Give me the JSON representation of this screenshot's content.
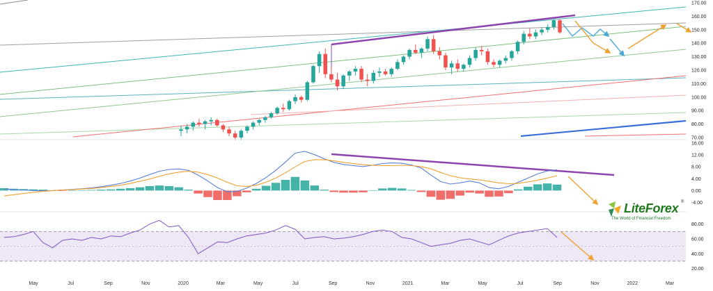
{
  "chart_data": [
    {
      "type": "candlestick",
      "panel": "price",
      "y_axis": {
        "ticks": [
          "170.00",
          "160.00",
          "150.00",
          "140.00",
          "130.00",
          "120.00",
          "110.00",
          "100.00",
          "90.00",
          "80.00",
          "70.00"
        ],
        "ylim": [
          70,
          170
        ],
        "position": "right"
      },
      "x_axis": {
        "ticks": [
          "May",
          "Jul",
          "Sep",
          "Nov",
          "2020",
          "Mar",
          "May",
          "Jul",
          "Sep",
          "Nov",
          "2021",
          "Mar",
          "May",
          "Jul",
          "Sep",
          "Nov",
          "2022",
          "Mar"
        ]
      },
      "up_color": "#26a69a",
      "down_color": "#ef5350",
      "candles": [
        {
          "o": 75,
          "h": 79,
          "l": 71,
          "c": 76
        },
        {
          "o": 76,
          "h": 80,
          "l": 73,
          "c": 78
        },
        {
          "o": 78,
          "h": 82,
          "l": 75,
          "c": 81
        },
        {
          "o": 81,
          "h": 84,
          "l": 78,
          "c": 80
        },
        {
          "o": 80,
          "h": 83,
          "l": 76,
          "c": 82
        },
        {
          "o": 82,
          "h": 85,
          "l": 79,
          "c": 83
        },
        {
          "o": 83,
          "h": 84,
          "l": 78,
          "c": 79
        },
        {
          "o": 79,
          "h": 80,
          "l": 74,
          "c": 76
        },
        {
          "o": 76,
          "h": 78,
          "l": 71,
          "c": 73
        },
        {
          "o": 73,
          "h": 75,
          "l": 68,
          "c": 70
        },
        {
          "o": 70,
          "h": 76,
          "l": 68,
          "c": 75
        },
        {
          "o": 75,
          "h": 79,
          "l": 73,
          "c": 78
        },
        {
          "o": 78,
          "h": 82,
          "l": 76,
          "c": 81
        },
        {
          "o": 81,
          "h": 84,
          "l": 79,
          "c": 83
        },
        {
          "o": 83,
          "h": 86,
          "l": 81,
          "c": 85
        },
        {
          "o": 85,
          "h": 89,
          "l": 84,
          "c": 88
        },
        {
          "o": 88,
          "h": 93,
          "l": 87,
          "c": 92
        },
        {
          "o": 92,
          "h": 95,
          "l": 89,
          "c": 91
        },
        {
          "o": 91,
          "h": 98,
          "l": 90,
          "c": 97
        },
        {
          "o": 97,
          "h": 102,
          "l": 95,
          "c": 100
        },
        {
          "o": 100,
          "h": 101,
          "l": 96,
          "c": 98
        },
        {
          "o": 98,
          "h": 112,
          "l": 97,
          "c": 111
        },
        {
          "o": 111,
          "h": 124,
          "l": 110,
          "c": 123
        },
        {
          "o": 123,
          "h": 134,
          "l": 118,
          "c": 132
        },
        {
          "o": 132,
          "h": 136,
          "l": 114,
          "c": 117
        },
        {
          "o": 117,
          "h": 123,
          "l": 111,
          "c": 113
        },
        {
          "o": 113,
          "h": 118,
          "l": 105,
          "c": 108
        },
        {
          "o": 108,
          "h": 117,
          "l": 106,
          "c": 116
        },
        {
          "o": 116,
          "h": 120,
          "l": 112,
          "c": 119
        },
        {
          "o": 119,
          "h": 123,
          "l": 116,
          "c": 121
        },
        {
          "o": 121,
          "h": 123,
          "l": 111,
          "c": 113
        },
        {
          "o": 113,
          "h": 117,
          "l": 108,
          "c": 112
        },
        {
          "o": 112,
          "h": 120,
          "l": 110,
          "c": 118
        },
        {
          "o": 118,
          "h": 122,
          "l": 115,
          "c": 119
        },
        {
          "o": 119,
          "h": 121,
          "l": 116,
          "c": 117
        },
        {
          "o": 117,
          "h": 122,
          "l": 115,
          "c": 121
        },
        {
          "o": 121,
          "h": 128,
          "l": 120,
          "c": 126
        },
        {
          "o": 126,
          "h": 131,
          "l": 124,
          "c": 130
        },
        {
          "o": 130,
          "h": 136,
          "l": 128,
          "c": 135
        },
        {
          "o": 135,
          "h": 139,
          "l": 132,
          "c": 133
        },
        {
          "o": 133,
          "h": 137,
          "l": 129,
          "c": 136
        },
        {
          "o": 136,
          "h": 145,
          "l": 134,
          "c": 143
        },
        {
          "o": 143,
          "h": 146,
          "l": 132,
          "c": 134
        },
        {
          "o": 134,
          "h": 137,
          "l": 128,
          "c": 131
        },
        {
          "o": 131,
          "h": 133,
          "l": 120,
          "c": 122
        },
        {
          "o": 122,
          "h": 127,
          "l": 117,
          "c": 125
        },
        {
          "o": 125,
          "h": 128,
          "l": 119,
          "c": 121
        },
        {
          "o": 121,
          "h": 125,
          "l": 119,
          "c": 124
        },
        {
          "o": 124,
          "h": 131,
          "l": 122,
          "c": 129
        },
        {
          "o": 129,
          "h": 137,
          "l": 127,
          "c": 135
        },
        {
          "o": 135,
          "h": 138,
          "l": 131,
          "c": 134
        },
        {
          "o": 134,
          "h": 136,
          "l": 124,
          "c": 126
        },
        {
          "o": 126,
          "h": 128,
          "l": 122,
          "c": 124
        },
        {
          "o": 124,
          "h": 128,
          "l": 122,
          "c": 127
        },
        {
          "o": 127,
          "h": 131,
          "l": 125,
          "c": 129
        },
        {
          "o": 129,
          "h": 135,
          "l": 127,
          "c": 134
        },
        {
          "o": 134,
          "h": 142,
          "l": 132,
          "c": 141
        },
        {
          "o": 141,
          "h": 149,
          "l": 139,
          "c": 147
        },
        {
          "o": 147,
          "h": 151,
          "l": 143,
          "c": 145
        },
        {
          "o": 145,
          "h": 150,
          "l": 143,
          "c": 148
        },
        {
          "o": 148,
          "h": 152,
          "l": 146,
          "c": 150
        },
        {
          "o": 150,
          "h": 154,
          "l": 148,
          "c": 152
        },
        {
          "o": 152,
          "h": 158,
          "l": 150,
          "c": 157
        },
        {
          "o": 157,
          "h": 158,
          "l": 147,
          "c": 148
        }
      ]
    },
    {
      "type": "line",
      "panel": "macd",
      "y_axis": {
        "ticks": [
          "16.00",
          "12.00",
          "8.00",
          "4.00",
          "0.00",
          "-4.00"
        ],
        "ylim": [
          -6,
          16
        ]
      },
      "series": [
        {
          "color": "#5b7fd6",
          "values": [
            0.5,
            0.4,
            0.2,
            0,
            -0.1,
            0,
            0.2,
            0.4,
            0.6,
            0.9,
            1.3,
            1.8,
            2.4,
            3.2,
            4.2,
            5.4,
            6.5,
            7.1,
            7.3,
            6.8,
            5.2,
            3.2,
            1.0,
            -0.4,
            -0.3,
            0.8,
            2.4,
            4.4,
            6.8,
            9.6,
            12.6,
            13.2,
            12.1,
            10.7,
            9.5,
            8.8,
            8.4,
            8.1,
            8.5,
            9.1,
            9.3,
            9.2,
            8.6,
            7.6,
            5.2,
            3.0,
            2.2,
            2.6,
            3.2,
            2.6,
            1.0,
            0.6,
            1.4,
            2.8,
            4.2,
            5.6,
            6.6,
            7.0
          ]
        },
        {
          "color": "#f0a030",
          "values": [
            -1.8,
            -1.4,
            -1,
            -0.6,
            -0.3,
            0,
            0.2,
            0.3,
            0.5,
            0.7,
            1,
            1.4,
            1.8,
            2.4,
            3.1,
            3.9,
            4.8,
            5.6,
            6.2,
            6.5,
            6.2,
            5.4,
            4.2,
            2.8,
            1.6,
            1.4,
            1.8,
            2.8,
            4.2,
            6.0,
            8.0,
            9.8,
            10.4,
            10.4,
            10.0,
            9.5,
            9.1,
            8.7,
            8.5,
            8.4,
            8.4,
            8.5,
            8.4,
            8.1,
            7.3,
            6.1,
            5.0,
            4.3,
            3.9,
            3.6,
            3.1,
            2.6,
            2.3,
            2.4,
            2.9,
            3.5,
            4.2,
            5.0
          ]
        }
      ],
      "histogram": [
        0.8,
        0.6,
        0.5,
        0.4,
        0.3,
        0.1,
        -0.1,
        0.1,
        0.1,
        0.2,
        0.3,
        0.4,
        0.6,
        0.8,
        1.1,
        1.5,
        1.7,
        1.5,
        1.1,
        0.3,
        -1.0,
        -2.2,
        -3.2,
        -3.2,
        -1.9,
        -0.6,
        0.6,
        1.6,
        2.6,
        3.6,
        4.6,
        3.4,
        1.7,
        0.3,
        -0.5,
        -0.7,
        -0.7,
        -0.6,
        0,
        0.7,
        0.9,
        0.7,
        0.2,
        -0.5,
        -2.1,
        -3.1,
        -2.8,
        -1.7,
        -0.7,
        -1.0,
        -2.1,
        -2.0,
        -0.9,
        0.4,
        1.3,
        2.1,
        2.4,
        2.0
      ],
      "hist_up_color": "#26a69a",
      "hist_down_color": "#ef5350"
    },
    {
      "type": "line",
      "panel": "rsi",
      "y_axis": {
        "ticks": [
          "80.00",
          "60.00",
          "40.00",
          "20.00"
        ],
        "ylim": [
          15,
          90
        ]
      },
      "band": [
        30,
        70
      ],
      "midline": 50,
      "band_color": "#ede7f6",
      "series": [
        {
          "color": "#7e57c2",
          "values": [
            62,
            63,
            66,
            70,
            55,
            48,
            58,
            60,
            58,
            62,
            60,
            64,
            63,
            68,
            72,
            80,
            85,
            76,
            78,
            62,
            40,
            48,
            56,
            55,
            60,
            64,
            66,
            68,
            72,
            78,
            73,
            60,
            62,
            63,
            60,
            61,
            63,
            66,
            70,
            72,
            70,
            62,
            60,
            55,
            50,
            52,
            54,
            58,
            60,
            56,
            52,
            58,
            64,
            68,
            70,
            72,
            74,
            62
          ]
        }
      ]
    }
  ],
  "branding": {
    "brand": "LiteForex",
    "registered": "®",
    "tagline": "The World of Financial Freedom"
  }
}
